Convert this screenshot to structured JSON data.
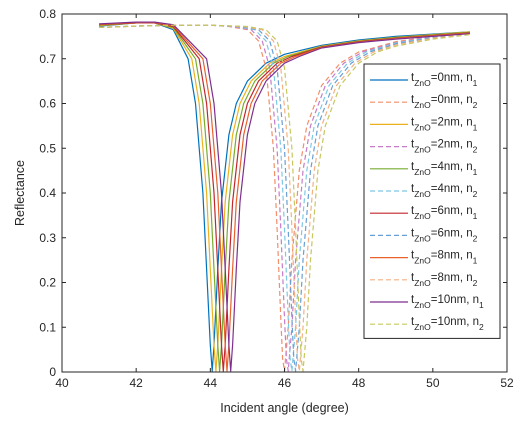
{
  "chart_data": {
    "type": "line",
    "xlabel": "Incident angle (degree)",
    "ylabel": "Reflectance",
    "xlim": [
      40,
      52
    ],
    "ylim": [
      0,
      0.8
    ],
    "xticks": [
      40,
      42,
      44,
      46,
      48,
      50,
      52
    ],
    "yticks": [
      0,
      0.1,
      0.2,
      0.3,
      0.4,
      0.5,
      0.6,
      0.7,
      0.8
    ],
    "grid": false,
    "legend_position": "right",
    "series": [
      {
        "name": "t_ZnO=0nm, n_1",
        "legend": {
          "base": "t",
          "sub1": "ZnO",
          "mid": "=0nm, n",
          "sub2": "1"
        },
        "color": "#0072BD",
        "dash": "solid",
        "x": [
          41.0,
          42.0,
          42.5,
          43.0,
          43.4,
          43.6,
          43.8,
          43.9,
          44.0,
          44.05,
          44.1,
          44.2,
          44.3,
          44.5,
          44.7,
          45.0,
          45.5,
          46.0,
          47.0,
          48.0,
          49.0,
          50.0,
          51.0
        ],
        "y": [
          0.773,
          0.78,
          0.78,
          0.765,
          0.7,
          0.6,
          0.4,
          0.23,
          0.06,
          0.002,
          0.06,
          0.23,
          0.38,
          0.53,
          0.6,
          0.65,
          0.69,
          0.71,
          0.73,
          0.742,
          0.75,
          0.755,
          0.76
        ]
      },
      {
        "name": "t_ZnO=0nm, n_2",
        "legend": {
          "base": "t",
          "sub1": "ZnO",
          "mid": "=0nm, n",
          "sub2": "2"
        },
        "color": "#F08F6A",
        "dash": "dashed",
        "x": [
          41.0,
          42.0,
          43.0,
          44.0,
          44.5,
          45.0,
          45.3,
          45.5,
          45.7,
          45.8,
          45.9,
          45.95,
          46.0,
          46.1,
          46.2,
          46.4,
          46.6,
          47.0,
          47.5,
          48.0,
          49.0,
          50.0,
          51.0
        ],
        "y": [
          0.77,
          0.773,
          0.775,
          0.775,
          0.772,
          0.765,
          0.74,
          0.68,
          0.5,
          0.32,
          0.12,
          0.03,
          0.002,
          0.1,
          0.25,
          0.45,
          0.55,
          0.64,
          0.69,
          0.715,
          0.738,
          0.75,
          0.758
        ]
      },
      {
        "name": "t_ZnO=2nm, n_1",
        "legend": {
          "base": "t",
          "sub1": "ZnO",
          "mid": "=2nm, n",
          "sub2": "1"
        },
        "color": "#EDB120",
        "dash": "solid",
        "x": [
          41.0,
          42.0,
          42.5,
          43.0,
          43.5,
          43.7,
          43.9,
          44.0,
          44.1,
          44.15,
          44.2,
          44.3,
          44.4,
          44.6,
          44.8,
          45.1,
          45.6,
          46.0,
          47.0,
          48.0,
          49.0,
          50.0,
          51.0
        ],
        "y": [
          0.774,
          0.78,
          0.78,
          0.768,
          0.7,
          0.6,
          0.4,
          0.23,
          0.06,
          0.002,
          0.06,
          0.23,
          0.38,
          0.53,
          0.6,
          0.65,
          0.69,
          0.705,
          0.728,
          0.74,
          0.748,
          0.754,
          0.76
        ]
      },
      {
        "name": "t_ZnO=2nm, n_2",
        "legend": {
          "base": "t",
          "sub1": "ZnO",
          "mid": "=2nm, n",
          "sub2": "2"
        },
        "color": "#C77CC9",
        "dash": "dashed",
        "x": [
          41.0,
          42.0,
          43.0,
          44.0,
          44.6,
          45.1,
          45.4,
          45.6,
          45.8,
          45.9,
          46.0,
          46.05,
          46.1,
          46.2,
          46.3,
          46.5,
          46.7,
          47.1,
          47.6,
          48.1,
          49.0,
          50.0,
          51.0
        ],
        "y": [
          0.77,
          0.773,
          0.775,
          0.775,
          0.772,
          0.765,
          0.74,
          0.68,
          0.5,
          0.32,
          0.12,
          0.03,
          0.002,
          0.1,
          0.25,
          0.45,
          0.55,
          0.64,
          0.69,
          0.715,
          0.736,
          0.749,
          0.757
        ]
      },
      {
        "name": "t_ZnO=4nm, n_1",
        "legend": {
          "base": "t",
          "sub1": "ZnO",
          "mid": "=4nm, n",
          "sub2": "1"
        },
        "color": "#77AC30",
        "dash": "solid",
        "x": [
          41.0,
          42.0,
          42.5,
          43.0,
          43.6,
          43.8,
          44.0,
          44.1,
          44.2,
          44.25,
          44.3,
          44.4,
          44.5,
          44.7,
          44.9,
          45.2,
          45.7,
          46.1,
          47.0,
          48.0,
          49.0,
          50.0,
          51.0
        ],
        "y": [
          0.775,
          0.78,
          0.78,
          0.77,
          0.7,
          0.6,
          0.4,
          0.23,
          0.06,
          0.002,
          0.06,
          0.23,
          0.38,
          0.53,
          0.6,
          0.65,
          0.69,
          0.705,
          0.727,
          0.739,
          0.747,
          0.753,
          0.759
        ]
      },
      {
        "name": "t_ZnO=4nm, n_2",
        "legend": {
          "base": "t",
          "sub1": "ZnO",
          "mid": "=4nm, n",
          "sub2": "2"
        },
        "color": "#7EC8E3",
        "dash": "dashed",
        "x": [
          41.0,
          42.0,
          43.0,
          44.0,
          44.7,
          45.2,
          45.5,
          45.7,
          45.9,
          46.0,
          46.1,
          46.15,
          46.2,
          46.3,
          46.4,
          46.6,
          46.8,
          47.2,
          47.7,
          48.2,
          49.0,
          50.0,
          51.0
        ],
        "y": [
          0.77,
          0.773,
          0.775,
          0.775,
          0.772,
          0.765,
          0.74,
          0.68,
          0.5,
          0.32,
          0.12,
          0.03,
          0.002,
          0.1,
          0.25,
          0.45,
          0.55,
          0.64,
          0.69,
          0.715,
          0.735,
          0.748,
          0.757
        ]
      },
      {
        "name": "t_ZnO=6nm, n_1",
        "legend": {
          "base": "t",
          "sub1": "ZnO",
          "mid": "=6nm, n",
          "sub2": "1"
        },
        "color": "#C1272D",
        "dash": "solid",
        "x": [
          41.0,
          42.0,
          42.5,
          43.0,
          43.7,
          43.9,
          44.1,
          44.2,
          44.3,
          44.35,
          44.4,
          44.5,
          44.6,
          44.8,
          45.0,
          45.3,
          45.8,
          46.2,
          47.0,
          48.0,
          49.0,
          50.0,
          51.0
        ],
        "y": [
          0.776,
          0.78,
          0.78,
          0.772,
          0.7,
          0.6,
          0.4,
          0.23,
          0.06,
          0.002,
          0.06,
          0.23,
          0.38,
          0.53,
          0.6,
          0.65,
          0.69,
          0.705,
          0.726,
          0.738,
          0.746,
          0.752,
          0.758
        ]
      },
      {
        "name": "t_ZnO=6nm, n_2",
        "legend": {
          "base": "t",
          "sub1": "ZnO",
          "mid": "=6nm, n",
          "sub2": "2"
        },
        "color": "#6A9FD4",
        "dash": "dashed",
        "x": [
          41.0,
          42.0,
          43.0,
          44.0,
          44.8,
          45.3,
          45.6,
          45.8,
          46.0,
          46.1,
          46.2,
          46.25,
          46.3,
          46.4,
          46.5,
          46.7,
          46.9,
          47.3,
          47.8,
          48.3,
          49.0,
          50.0,
          51.0
        ],
        "y": [
          0.77,
          0.773,
          0.775,
          0.775,
          0.772,
          0.765,
          0.74,
          0.68,
          0.5,
          0.32,
          0.12,
          0.03,
          0.002,
          0.1,
          0.25,
          0.45,
          0.55,
          0.64,
          0.69,
          0.715,
          0.733,
          0.747,
          0.756
        ]
      },
      {
        "name": "t_ZnO=8nm, n_1",
        "legend": {
          "base": "t",
          "sub1": "ZnO",
          "mid": "=8nm, n",
          "sub2": "1"
        },
        "color": "#E8622B",
        "dash": "solid",
        "x": [
          41.0,
          42.0,
          42.5,
          43.0,
          43.8,
          44.0,
          44.2,
          44.3,
          44.4,
          44.45,
          44.5,
          44.6,
          44.7,
          44.9,
          45.1,
          45.4,
          45.9,
          46.3,
          47.0,
          48.0,
          49.0,
          50.0,
          51.0
        ],
        "y": [
          0.777,
          0.781,
          0.781,
          0.774,
          0.7,
          0.6,
          0.4,
          0.23,
          0.06,
          0.002,
          0.06,
          0.23,
          0.38,
          0.53,
          0.6,
          0.65,
          0.69,
          0.705,
          0.725,
          0.737,
          0.745,
          0.751,
          0.757
        ]
      },
      {
        "name": "t_ZnO=8nm, n_2",
        "legend": {
          "base": "t",
          "sub1": "ZnO",
          "mid": "=8nm, n",
          "sub2": "2"
        },
        "color": "#F4B183",
        "dash": "dashed",
        "x": [
          41.0,
          42.0,
          43.0,
          44.0,
          44.9,
          45.4,
          45.7,
          45.9,
          46.1,
          46.2,
          46.3,
          46.35,
          46.4,
          46.5,
          46.6,
          46.8,
          47.0,
          47.4,
          47.9,
          48.4,
          49.0,
          50.0,
          51.0
        ],
        "y": [
          0.77,
          0.773,
          0.775,
          0.775,
          0.772,
          0.765,
          0.74,
          0.68,
          0.5,
          0.32,
          0.12,
          0.03,
          0.002,
          0.1,
          0.25,
          0.45,
          0.55,
          0.64,
          0.69,
          0.715,
          0.731,
          0.746,
          0.755
        ]
      },
      {
        "name": "t_ZnO=10nm, n_1",
        "legend": {
          "base": "t",
          "sub1": "ZnO",
          "mid": "=10nm, n",
          "sub2": "1"
        },
        "color": "#7E2F8E",
        "dash": "solid",
        "x": [
          41.0,
          42.0,
          42.5,
          43.0,
          43.9,
          44.1,
          44.3,
          44.4,
          44.5,
          44.55,
          44.6,
          44.7,
          44.8,
          45.0,
          45.2,
          45.5,
          46.0,
          46.4,
          47.0,
          48.0,
          49.0,
          50.0,
          51.0
        ],
        "y": [
          0.778,
          0.782,
          0.782,
          0.776,
          0.7,
          0.6,
          0.4,
          0.23,
          0.06,
          0.002,
          0.06,
          0.23,
          0.38,
          0.53,
          0.6,
          0.65,
          0.69,
          0.705,
          0.724,
          0.736,
          0.744,
          0.75,
          0.756
        ]
      },
      {
        "name": "t_ZnO=10nm, n_2",
        "legend": {
          "base": "t",
          "sub1": "ZnO",
          "mid": "=10nm, n",
          "sub2": "2"
        },
        "color": "#C7C75E",
        "dash": "dashed",
        "x": [
          41.0,
          42.0,
          43.0,
          44.0,
          45.0,
          45.5,
          45.8,
          46.0,
          46.2,
          46.3,
          46.4,
          46.45,
          46.5,
          46.6,
          46.7,
          46.9,
          47.1,
          47.5,
          48.0,
          48.5,
          49.0,
          50.0,
          51.0
        ],
        "y": [
          0.77,
          0.773,
          0.775,
          0.775,
          0.772,
          0.765,
          0.74,
          0.68,
          0.5,
          0.32,
          0.12,
          0.03,
          0.002,
          0.1,
          0.25,
          0.45,
          0.55,
          0.64,
          0.69,
          0.715,
          0.728,
          0.744,
          0.754
        ]
      }
    ]
  }
}
